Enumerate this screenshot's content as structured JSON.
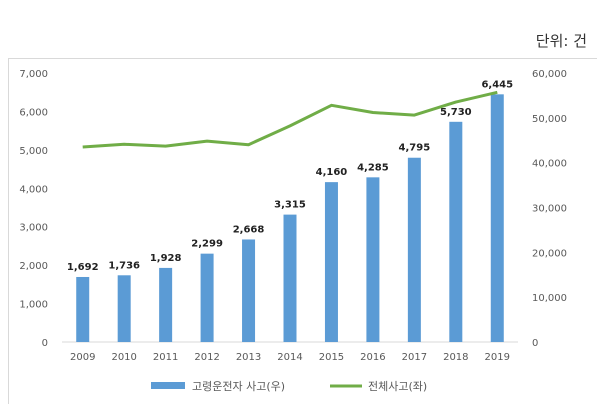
{
  "unit_label": "단위: 건",
  "chart_data": {
    "type": "bar",
    "categories": [
      "2009",
      "2010",
      "2011",
      "2012",
      "2013",
      "2014",
      "2015",
      "2016",
      "2017",
      "2018",
      "2019"
    ],
    "series": [
      {
        "name": "고령운전자 사고(우)",
        "type": "bar",
        "axis": "left",
        "color": "#5b9bd5",
        "values": [
          1692,
          1736,
          1928,
          2299,
          2668,
          3315,
          4160,
          4285,
          4795,
          5730,
          6445
        ],
        "labels": [
          "1,692",
          "1,736",
          "1,928",
          "2,299",
          "2,668",
          "3,315",
          "4,160",
          "4,285",
          "4,795",
          "5,730",
          "6,445"
        ]
      },
      {
        "name": "전체사고(좌)",
        "type": "line",
        "axis": "right",
        "color": "#70ad47",
        "values": [
          43500,
          44100,
          43700,
          44800,
          44000,
          48200,
          52800,
          51200,
          50600,
          53500,
          55700
        ]
      }
    ],
    "yleft": {
      "min": 0,
      "max": 7000,
      "ticks": [
        "0",
        "1,000",
        "2,000",
        "3,000",
        "4,000",
        "5,000",
        "6,000",
        "7,000"
      ]
    },
    "yright": {
      "min": 0,
      "max": 60000,
      "ticks": [
        "0",
        "10,000",
        "20,000",
        "30,000",
        "40,000",
        "50,000",
        "60,000"
      ]
    },
    "legend_position": "bottom",
    "grid": false
  }
}
